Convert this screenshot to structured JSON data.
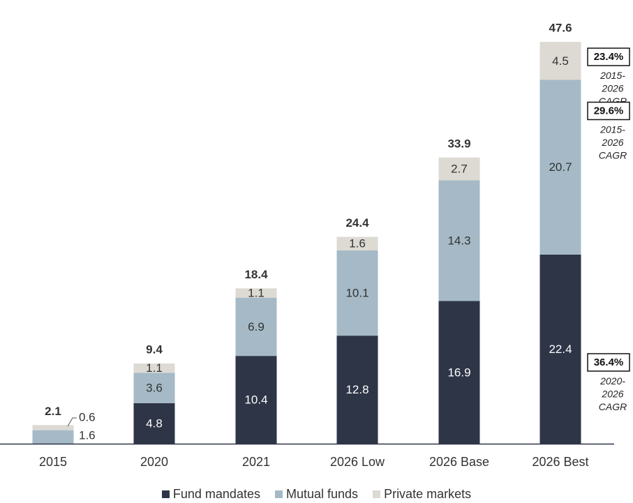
{
  "chart_data": {
    "type": "bar",
    "stacked": true,
    "categories": [
      "2015",
      "2020",
      "2021",
      "2026 Low",
      "2026 Base",
      "2026 Best"
    ],
    "series": [
      {
        "name": "Fund mandates",
        "values": [
          0,
          4.8,
          10.4,
          12.8,
          16.9,
          22.4
        ],
        "color": "#2e3547"
      },
      {
        "name": "Mutual funds",
        "values": [
          1.6,
          3.6,
          6.9,
          10.1,
          14.3,
          20.7
        ],
        "color": "#a5bac6"
      },
      {
        "name": "Private markets",
        "values": [
          0.6,
          1.1,
          1.1,
          1.6,
          2.7,
          4.5
        ],
        "color": "#dcdad3"
      }
    ],
    "totals": [
      "2.1",
      "9.4",
      "18.4",
      "24.4",
      "33.9",
      "47.6"
    ],
    "segment_labels": [
      [
        "",
        "1.6",
        "0.6"
      ],
      [
        "4.8",
        "3.6",
        "1.1"
      ],
      [
        "10.4",
        "6.9",
        "1.1"
      ],
      [
        "12.8",
        "10.1",
        "1.6"
      ],
      [
        "16.9",
        "14.3",
        "2.7"
      ],
      [
        "22.4",
        "20.7",
        "4.5"
      ]
    ],
    "cagr_annotations": [
      {
        "value": "23.4%",
        "lines": [
          "2015-",
          "2026",
          "CAGR"
        ],
        "series": "Private markets"
      },
      {
        "value": "29.6%",
        "lines": [
          "2015-",
          "2026",
          "CAGR"
        ],
        "series": "Mutual funds"
      },
      {
        "value": "36.4%",
        "lines": [
          "2020-",
          "2026",
          "CAGR"
        ],
        "series": "Fund mandates"
      }
    ],
    "title": "",
    "xlabel": "",
    "ylabel": "",
    "ylim": [
      0,
      47.6
    ],
    "grid": false,
    "legend_position": "bottom-center"
  }
}
